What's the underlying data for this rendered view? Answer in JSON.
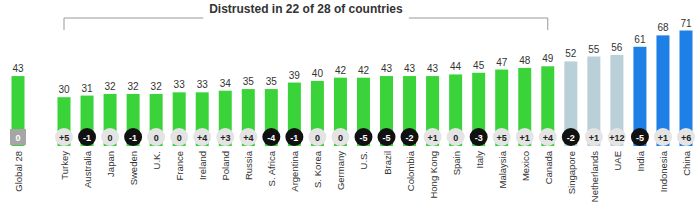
{
  "chart_data": {
    "type": "bar",
    "title": "Distrusted in 22 of 28 of countries",
    "bracket": [
      "Turkey",
      "Canada"
    ],
    "categories": [
      "Global 28",
      "Turkey",
      "Australia",
      "Japan",
      "Sweden",
      "U.K.",
      "France",
      "Ireland",
      "Poland",
      "Russia",
      "S. Africa",
      "Argentina",
      "S. Korea",
      "Germany",
      "U.S.",
      "Brazil",
      "Colombia",
      "Hong Kong",
      "Spain",
      "Italy",
      "Malaysia",
      "Mexico",
      "Canada",
      "Singapore",
      "Netherlands",
      "UAE",
      "India",
      "Indonesia",
      "China"
    ],
    "values": [
      43,
      30,
      31,
      32,
      32,
      32,
      33,
      33,
      34,
      35,
      35,
      39,
      40,
      42,
      42,
      43,
      43,
      43,
      44,
      45,
      47,
      48,
      49,
      52,
      55,
      56,
      61,
      68,
      71
    ],
    "colors": [
      "#3ad43a",
      "#3ad43a",
      "#3ad43a",
      "#3ad43a",
      "#3ad43a",
      "#3ad43a",
      "#3ad43a",
      "#3ad43a",
      "#3ad43a",
      "#3ad43a",
      "#3ad43a",
      "#3ad43a",
      "#3ad43a",
      "#3ad43a",
      "#3ad43a",
      "#3ad43a",
      "#3ad43a",
      "#3ad43a",
      "#3ad43a",
      "#3ad43a",
      "#3ad43a",
      "#3ad43a",
      "#3ad43a",
      "#b9d0d9",
      "#b9d0d9",
      "#b9d0d9",
      "#1e7fe6",
      "#1e7fe6",
      "#1e7fe6"
    ],
    "changes": [
      0,
      5,
      -1,
      0,
      -1,
      0,
      0,
      4,
      3,
      4,
      -4,
      -1,
      0,
      0,
      -5,
      -5,
      -2,
      1,
      0,
      -3,
      5,
      1,
      4,
      -2,
      1,
      12,
      -5,
      1,
      6
    ],
    "change_labels": [
      "0",
      "+5",
      "-1",
      "0",
      "-1",
      "0",
      "0",
      "+4",
      "+3",
      "+4",
      "-4",
      "-1",
      "0",
      "0",
      "-5",
      "-5",
      "-2",
      "+1",
      "0",
      "-3",
      "+5",
      "+1",
      "+4",
      "-2",
      "+1",
      "+12",
      "-5",
      "+1",
      "+6"
    ],
    "ylim": [
      0,
      75
    ],
    "data_labels": true,
    "tick_labels": "x"
  }
}
